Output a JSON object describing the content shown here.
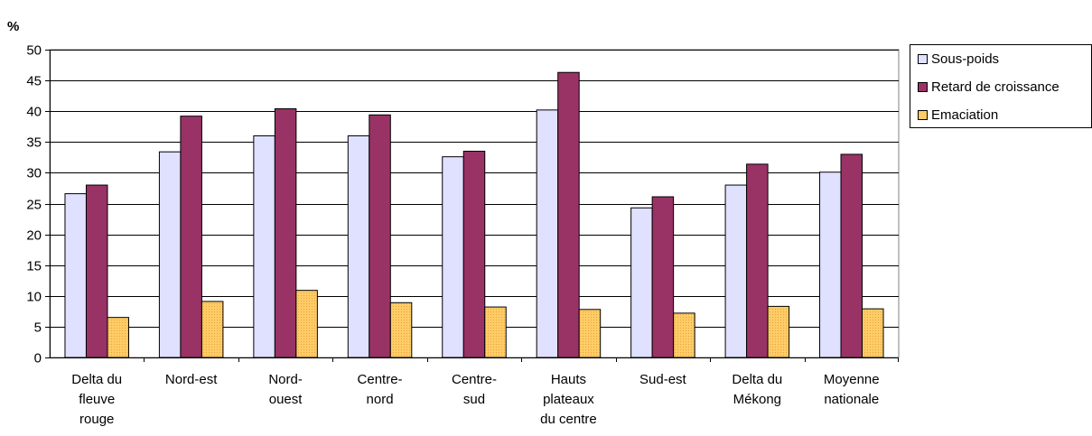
{
  "chart_data": {
    "type": "bar",
    "ylabel": "%",
    "ylim": [
      0,
      50
    ],
    "yticks": [
      0,
      5,
      10,
      15,
      20,
      25,
      30,
      35,
      40,
      45,
      50
    ],
    "grid": true,
    "legend_position": "right",
    "categories": [
      [
        "Delta du",
        "fleuve",
        "rouge"
      ],
      [
        "Nord-est"
      ],
      [
        "Nord-",
        "ouest"
      ],
      [
        "Centre-",
        "nord"
      ],
      [
        "Centre-",
        "sud"
      ],
      [
        "Hauts",
        "plateaux",
        "du centre"
      ],
      [
        "Sud-est"
      ],
      [
        "Delta du",
        "Mékong"
      ],
      [
        "Moyenne",
        "nationale"
      ]
    ],
    "series": [
      {
        "name": "Sous-poids",
        "color": "#e0e0ff",
        "values": [
          26.6,
          33.4,
          36.0,
          36.0,
          32.6,
          40.2,
          24.3,
          28.0,
          30.1
        ]
      },
      {
        "name": "Retard de croissance",
        "color": "#993366",
        "values": [
          28.0,
          39.2,
          40.4,
          39.4,
          33.5,
          46.3,
          26.1,
          31.4,
          33.0
        ]
      },
      {
        "name": "Emaciation",
        "color": "#ffcc66",
        "values": [
          6.5,
          9.1,
          10.9,
          8.9,
          8.2,
          7.8,
          7.2,
          8.3,
          7.9
        ]
      }
    ]
  }
}
